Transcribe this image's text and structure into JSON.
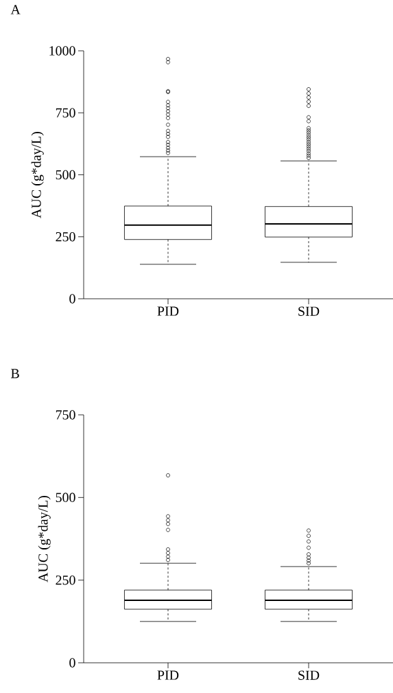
{
  "chart_data": [
    {
      "type": "box",
      "title": "A",
      "ylabel": "AUC (g*day/L)",
      "categories": [
        "PID",
        "SID"
      ],
      "ylim": [
        0,
        1000
      ],
      "yticks": [
        0,
        250,
        500,
        750,
        1000
      ],
      "boxes": [
        {
          "low": 139,
          "q1": 239,
          "median": 297,
          "q3": 374,
          "high": 573,
          "outliers": [
            967,
            954,
            837,
            834,
            794,
            780,
            769,
            756,
            743,
            729,
            702,
            677,
            665,
            653,
            632,
            621,
            609,
            598,
            588
          ]
        },
        {
          "low": 147,
          "q1": 249,
          "median": 302,
          "q3": 372,
          "high": 556,
          "outliers": [
            845,
            828,
            812,
            795,
            778,
            732,
            716,
            688,
            679,
            670,
            660,
            651,
            642,
            632,
            623,
            614,
            605,
            596,
            586,
            577,
            568
          ]
        }
      ]
    },
    {
      "type": "box",
      "title": "B",
      "ylabel": "AUC (g*day/L)",
      "categories": [
        "PID",
        "SID"
      ],
      "ylim": [
        0,
        750
      ],
      "yticks": [
        0,
        250,
        500,
        750
      ],
      "boxes": [
        {
          "low": 125,
          "q1": 162,
          "median": 189,
          "q3": 220,
          "high": 301,
          "outliers": [
            567,
            443,
            431,
            420,
            402,
            343,
            332,
            321,
            311
          ]
        },
        {
          "low": 125,
          "q1": 162,
          "median": 189,
          "q3": 220,
          "high": 291,
          "outliers": [
            400,
            384,
            367,
            348,
            328,
            318,
            309,
            301
          ]
        }
      ]
    }
  ]
}
